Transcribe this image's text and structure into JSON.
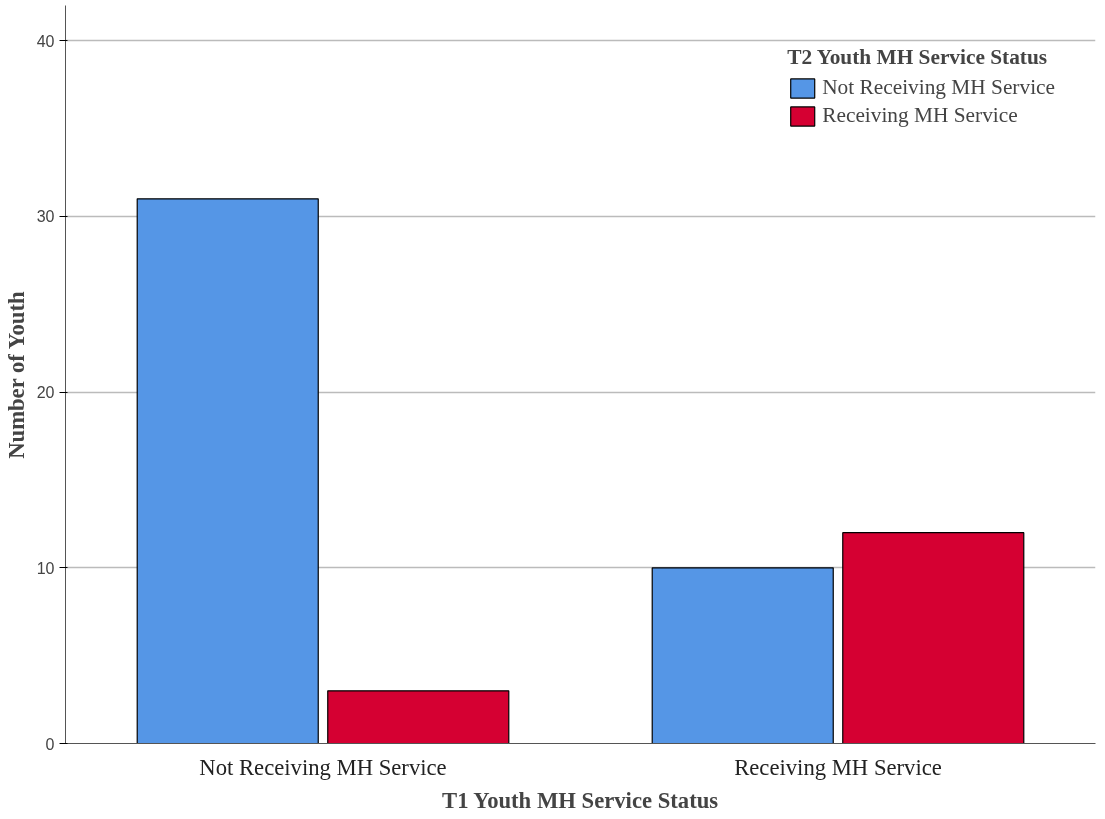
{
  "chart_data": {
    "type": "bar",
    "xlabel": "T1 Youth MH Service Status",
    "ylabel": "Number of Youth",
    "legend_title": "T2 Youth MH Service Status",
    "categories": [
      "Not Receiving MH Service",
      "Receiving MH Service"
    ],
    "series": [
      {
        "name": "Not Receiving MH Service",
        "color": "#5596e6",
        "values": [
          31,
          10
        ]
      },
      {
        "name": "Receiving MH Service",
        "color": "#d50032",
        "values": [
          3,
          12
        ]
      }
    ],
    "ylim": [
      0,
      42
    ],
    "yticks": [
      0,
      10,
      20,
      30,
      40
    ],
    "grid": "y",
    "legend": "top right"
  }
}
